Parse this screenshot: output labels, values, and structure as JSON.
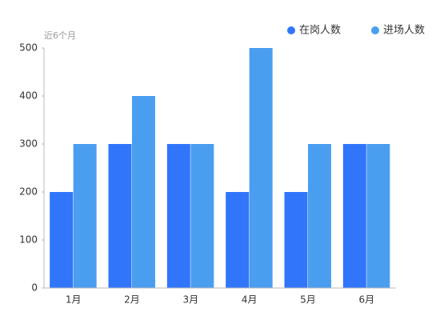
{
  "chart_data": {
    "type": "bar",
    "y_label": "近6个月",
    "categories": [
      "1月",
      "2月",
      "3月",
      "4月",
      "5月",
      "6月"
    ],
    "series": [
      {
        "name": "在岗人数",
        "color": "#3175fb",
        "values": [
          200,
          300,
          300,
          200,
          200,
          300
        ]
      },
      {
        "name": "进场人数",
        "color": "#4a9ef0",
        "values": [
          300,
          400,
          300,
          500,
          300,
          300
        ]
      }
    ],
    "ylim": [
      0,
      500
    ],
    "yticks": [
      0,
      100,
      200,
      300,
      400,
      500
    ],
    "grid": false,
    "legend": "top-right"
  }
}
